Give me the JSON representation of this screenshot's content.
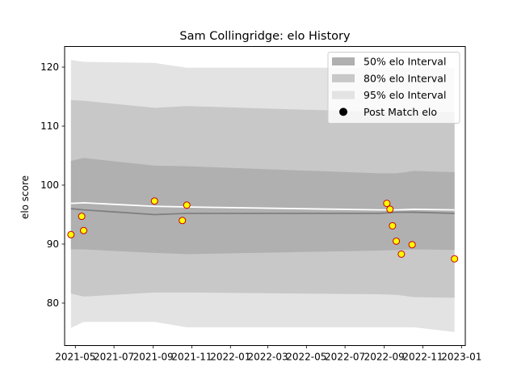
{
  "chart_data": {
    "type": "line",
    "title": "Sam Collingridge: elo History",
    "xlabel": "",
    "ylabel": "elo score",
    "xlim": [
      "2021-04-14",
      "2023-01-07"
    ],
    "ylim": [
      72.8,
      123.5
    ],
    "x_ticks": [
      "2021-05",
      "2021-07",
      "2021-09",
      "2021-11",
      "2022-01",
      "2022-03",
      "2022-05",
      "2022-07",
      "2022-09",
      "2022-11",
      "2023-01"
    ],
    "y_ticks": [
      80,
      90,
      100,
      110,
      120
    ],
    "grid": false,
    "legend_position": "top-right",
    "legend": [
      {
        "label": "50% elo Interval",
        "kind": "patch",
        "color": "#b0b0b0"
      },
      {
        "label": "80% elo Interval",
        "kind": "patch",
        "color": "#c8c8c8"
      },
      {
        "label": "95% elo Interval",
        "kind": "patch",
        "color": "#e3e3e3"
      },
      {
        "label": "Post Match elo",
        "kind": "marker",
        "color": "#000000"
      }
    ],
    "band_x": [
      "2021-04-24",
      "2021-05-14",
      "2021-09-03",
      "2021-10-24",
      "2022-08-24",
      "2022-09-21",
      "2022-10-18",
      "2022-12-21"
    ],
    "mean": [
      96.0,
      95.8,
      95.0,
      95.2,
      95.2,
      95.4,
      95.4,
      95.2
    ],
    "median": [
      96.9,
      97.0,
      96.4,
      96.3,
      95.8,
      95.8,
      95.9,
      95.8
    ],
    "bands": [
      {
        "name": "95% elo Interval",
        "color": "#e3e3e3",
        "upper": [
          121.2,
          120.9,
          120.7,
          119.9,
          119.9,
          119.9,
          119.9,
          119.9
        ],
        "lower": [
          75.8,
          76.8,
          76.8,
          75.9,
          75.9,
          75.9,
          75.9,
          75.1
        ]
      },
      {
        "name": "80% elo Interval",
        "color": "#c8c8c8",
        "upper": [
          114.4,
          114.3,
          113.1,
          113.4,
          112.4,
          112.4,
          112.4,
          112.4
        ],
        "lower": [
          81.6,
          81.1,
          81.8,
          81.8,
          81.5,
          81.4,
          81.0,
          80.9
        ]
      },
      {
        "name": "50% elo Interval",
        "color": "#b0b0b0",
        "upper": [
          104.1,
          104.6,
          103.3,
          103.2,
          102.0,
          102.0,
          102.4,
          102.2
        ],
        "lower": [
          89.1,
          89.1,
          88.5,
          88.3,
          88.9,
          89.0,
          89.1,
          89.0
        ]
      }
    ],
    "points": [
      {
        "x": "2021-04-24",
        "y": 91.6
      },
      {
        "x": "2021-05-11",
        "y": 94.7
      },
      {
        "x": "2021-05-14",
        "y": 92.3
      },
      {
        "x": "2021-09-03",
        "y": 97.3
      },
      {
        "x": "2021-10-17",
        "y": 94.0
      },
      {
        "x": "2021-10-24",
        "y": 96.6
      },
      {
        "x": "2022-09-05",
        "y": 96.9
      },
      {
        "x": "2022-09-10",
        "y": 95.9
      },
      {
        "x": "2022-09-14",
        "y": 93.1
      },
      {
        "x": "2022-09-20",
        "y": 90.5
      },
      {
        "x": "2022-09-28",
        "y": 88.3
      },
      {
        "x": "2022-10-15",
        "y": 89.9
      },
      {
        "x": "2022-12-21",
        "y": 87.5
      }
    ],
    "colors": {
      "mean_line": "#7f7f7f",
      "median_line": "#ffffff",
      "marker_face": "#ffff00",
      "marker_edge": "#cc0000"
    }
  }
}
